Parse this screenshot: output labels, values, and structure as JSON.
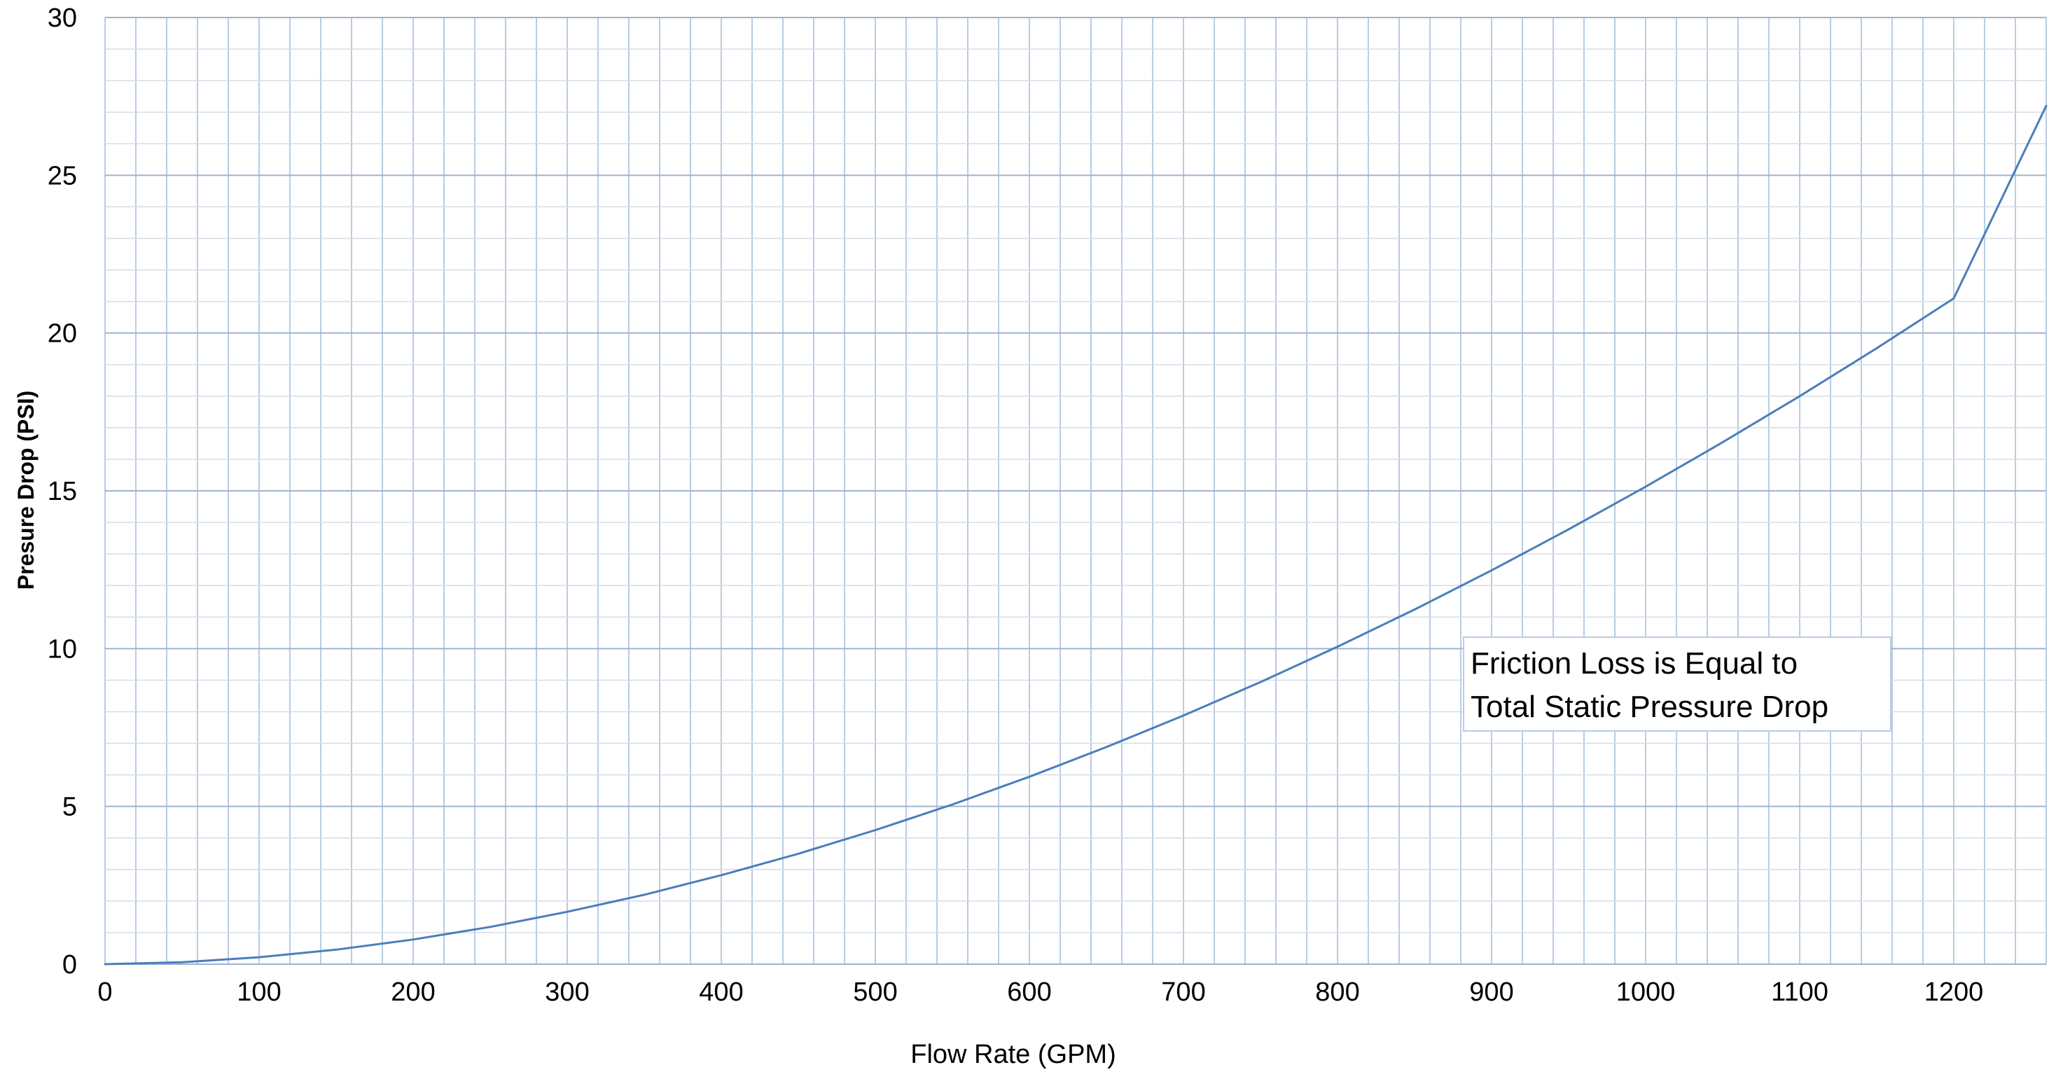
{
  "chart_data": {
    "type": "line",
    "title": "",
    "xlabel": "Flow Rate (GPM)",
    "ylabel": "Presure  Drop (PSI)",
    "xlim": [
      0,
      1260
    ],
    "ylim": [
      0,
      30
    ],
    "x_ticks": [
      0,
      100,
      200,
      300,
      400,
      500,
      600,
      700,
      800,
      900,
      1000,
      1100,
      1200
    ],
    "y_ticks": [
      0,
      5,
      10,
      15,
      20,
      25,
      30
    ],
    "x_minor_step": 20,
    "y_minor_step": 1,
    "grid": true,
    "line_color": "#4a7ebb",
    "grid_color": "#b8cce4",
    "series": [
      {
        "x": [
          0,
          50,
          100,
          150,
          200,
          250,
          300,
          350,
          400,
          450,
          500,
          550,
          600,
          650,
          700,
          750,
          800,
          850,
          900,
          950,
          1000,
          1050,
          1100,
          1150,
          1200,
          1260
        ],
        "values": [
          0,
          0.06,
          0.22,
          0.46,
          0.78,
          1.18,
          1.66,
          2.2,
          2.82,
          3.5,
          4.25,
          5.06,
          5.94,
          6.88,
          7.88,
          8.94,
          10.06,
          11.24,
          12.48,
          13.78,
          15.13,
          16.54,
          18.0,
          19.52,
          21.1,
          27.2
        ]
      }
    ],
    "annotation": {
      "lines": [
        "Friction Loss is Equal to",
        "Total Static Pressure Drop"
      ]
    }
  }
}
